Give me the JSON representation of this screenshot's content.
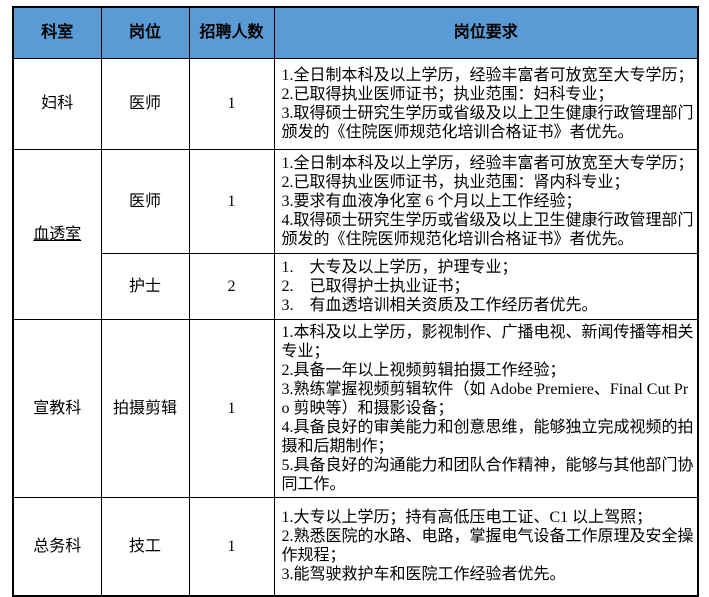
{
  "table": {
    "header": {
      "bg": "#5B9BD5",
      "columns": [
        "科室",
        "岗位",
        "招聘人数",
        "岗位要求"
      ]
    },
    "rows": [
      {
        "dept": {
          "label": "妇科",
          "rowspan": 1,
          "underline": false
        },
        "position": "医师",
        "count": "1",
        "requirements": [
          "1.全日制本科及以上学历，经验丰富者可放宽至大专学历；",
          "2.已取得执业医师证书；执业范围：妇科专业；",
          "3.取得硕士研究生学历或省级及以上卫生健康行政管理部门颁发的《住院医师规范化培训合格证书》者优先。"
        ]
      },
      {
        "dept": {
          "label": "血透室",
          "rowspan": 2,
          "underline": true
        },
        "position": "医师",
        "count": "1",
        "requirements": [
          "1.全日制本科及以上学历，经验丰富者可放宽至大专学历；",
          "2.已取得执业医师证书，执业范围：肾内科专业；",
          "3.要求有血液净化室 6 个月以上工作经验；",
          "4.取得硕士研究生学历或省级及以上卫生健康行政管理部门颁发的《住院医师规范化培训合格证书》者优先。"
        ]
      },
      {
        "dept": null,
        "position": "护士",
        "count": "2",
        "requirements": [
          "1.　大专及以上学历，护理专业；",
          "2.　已取得护士执业证书；",
          "3.　有血透培训相关资质及工作经历者优先。"
        ]
      },
      {
        "dept": {
          "label": "宣教科",
          "rowspan": 1,
          "underline": false
        },
        "position": "拍摄剪辑",
        "count": "1",
        "requirements": [
          "1.本科及以上学历，影视制作、广播电视、新闻传播等相关专业；",
          "2.具备一年以上视频剪辑拍摄工作经验；",
          "3.熟练掌握视频剪辑软件（如 Adobe Premiere、Final Cut Pro 剪映等）和摄影设备；",
          "4.具备良好的审美能力和创意思维，能够独立完成视频的拍摄和后期制作；",
          "5.具备良好的沟通能力和团队合作精神，能够与其他部门协同工作。"
        ]
      },
      {
        "dept": {
          "label": "总务科",
          "rowspan": 1,
          "underline": false
        },
        "position": "技工",
        "count": "1",
        "requirements": [
          "1.大专以上学历；持有高低压电工证、C1 以上驾照；",
          "2.熟悉医院的水路、电路，掌握电气设备工作原理及安全操作规程；",
          "3.能驾驶救护车和医院工作经验者优先。"
        ]
      }
    ]
  }
}
